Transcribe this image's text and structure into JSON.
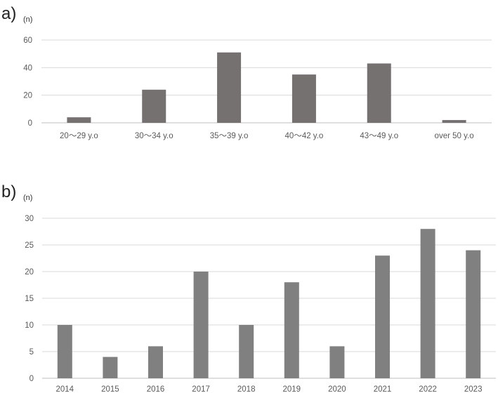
{
  "chart_data": [
    {
      "panel_label": "a)",
      "unit_label": "(n)",
      "type": "bar",
      "categories": [
        "20〜29 y.o",
        "30〜34 y.o",
        "35〜39 y.o",
        "40〜42 y.o",
        "43〜49 y.o",
        "over 50 y.o"
      ],
      "values": [
        4,
        24,
        51,
        35,
        43,
        2
      ],
      "ylim": [
        0,
        60
      ],
      "yticks": [
        0,
        20,
        40,
        60
      ],
      "grid": true,
      "bar_color": "#767171"
    },
    {
      "panel_label": "b)",
      "unit_label": "(n)",
      "type": "bar",
      "categories": [
        "2014",
        "2015",
        "2016",
        "2017",
        "2018",
        "2019",
        "2020",
        "2021",
        "2022",
        "2023"
      ],
      "values": [
        10,
        4,
        6,
        20,
        10,
        18,
        6,
        23,
        28,
        24
      ],
      "ylim": [
        0,
        30
      ],
      "yticks": [
        0,
        5,
        10,
        15,
        20,
        25,
        30
      ],
      "grid": true,
      "bar_color": "#808080"
    }
  ]
}
